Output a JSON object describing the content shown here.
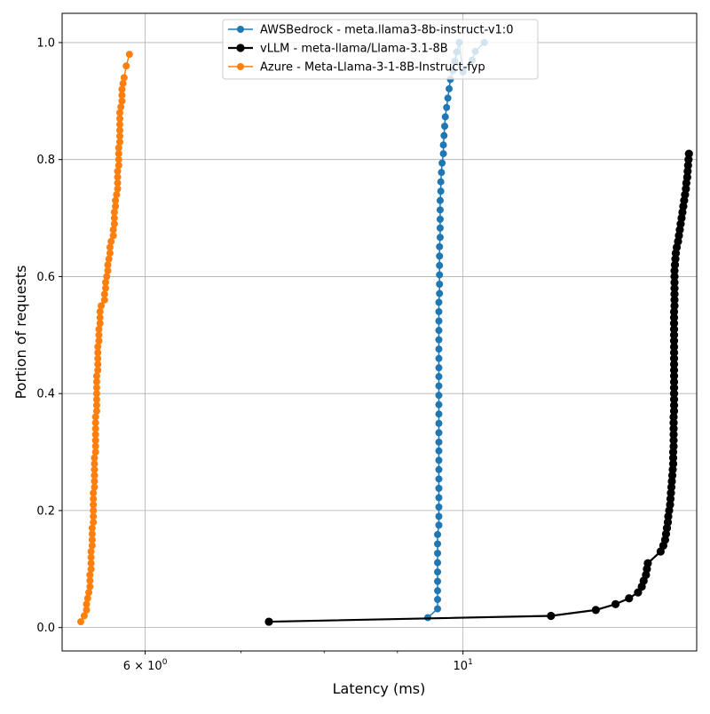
{
  "chart_data": {
    "type": "line",
    "title": "",
    "xlabel": "Latency (ms)",
    "ylabel": "Portion of requests",
    "xscale": "log",
    "xlim": [
      5.25,
      14.56
    ],
    "ylim": [
      -0.04,
      1.05
    ],
    "x_tick_labels": [
      {
        "value": 6,
        "text": "6 × 10",
        "exp": "0"
      },
      {
        "value": 10,
        "text": "10",
        "exp": "1"
      }
    ],
    "x_minor_ticks": [
      7,
      8,
      9,
      20
    ],
    "y_ticks": [
      0.0,
      0.2,
      0.4,
      0.6,
      0.8,
      1.0
    ],
    "y_tick_labels": [
      "0.0",
      "0.2",
      "0.4",
      "0.6",
      "0.8",
      "1.0"
    ],
    "grid": true,
    "legend_position": "top-center",
    "series": [
      {
        "name": "AWSBedrock - meta.llama3-8b-instruct-v1:0",
        "color": "#1f77b4",
        "linewidth": 1.5,
        "marker_radius": 4,
        "x": [
          9.45,
          9.6,
          9.6,
          9.6,
          9.6,
          9.6,
          9.6,
          9.6,
          9.6,
          9.6,
          9.62,
          9.62,
          9.62,
          9.62,
          9.62,
          9.62,
          9.62,
          9.62,
          9.62,
          9.62,
          9.62,
          9.62,
          9.62,
          9.62,
          9.62,
          9.62,
          9.62,
          9.62,
          9.62,
          9.62,
          9.62,
          9.62,
          9.62,
          9.62,
          9.62,
          9.63,
          9.63,
          9.63,
          9.63,
          9.63,
          9.63,
          9.64,
          9.64,
          9.64,
          9.64,
          9.64,
          9.65,
          9.65,
          9.66,
          9.67,
          9.69,
          9.69,
          9.7,
          9.71,
          9.72,
          9.74,
          9.76,
          9.78,
          9.8,
          9.84,
          9.87,
          9.9,
          9.94,
          10.0,
          10.15,
          10.2,
          10.35
        ],
        "y": [
          0.017,
          0.032,
          0.048,
          0.063,
          0.079,
          0.095,
          0.111,
          0.127,
          0.143,
          0.159,
          0.175,
          0.19,
          0.206,
          0.222,
          0.238,
          0.254,
          0.27,
          0.286,
          0.302,
          0.317,
          0.333,
          0.349,
          0.365,
          0.381,
          0.397,
          0.413,
          0.429,
          0.444,
          0.46,
          0.476,
          0.492,
          0.508,
          0.524,
          0.54,
          0.556,
          0.571,
          0.587,
          0.603,
          0.619,
          0.635,
          0.651,
          0.667,
          0.683,
          0.698,
          0.714,
          0.73,
          0.746,
          0.762,
          0.778,
          0.794,
          0.81,
          0.825,
          0.841,
          0.857,
          0.873,
          0.889,
          0.905,
          0.921,
          0.937,
          0.952,
          0.968,
          0.984,
          1.0,
          0.95,
          0.97,
          0.985,
          1.0
        ]
      },
      {
        "name": "vLLM - meta-llama/Llama-3.1-8B",
        "color": "#000000",
        "linewidth": 2.2,
        "marker_radius": 4.6,
        "x": [
          7.32,
          11.52,
          12.38,
          12.78,
          13.06,
          13.25,
          13.33,
          13.37,
          13.42,
          13.44,
          13.46,
          13.74,
          13.8,
          13.84,
          13.86,
          13.88,
          13.9,
          13.91,
          13.93,
          13.95,
          13.96,
          13.97,
          13.98,
          13.99,
          14.0,
          14.01,
          14.02,
          14.02,
          14.02,
          14.03,
          14.03,
          14.03,
          14.03,
          14.03,
          14.03,
          14.04,
          14.04,
          14.04,
          14.04,
          14.04,
          14.04,
          14.04,
          14.04,
          14.04,
          14.04,
          14.04,
          14.04,
          14.04,
          14.04,
          14.04,
          14.04,
          14.04,
          14.04,
          14.05,
          14.05,
          14.05,
          14.05,
          14.05,
          14.05,
          14.05,
          14.06,
          14.07,
          14.08,
          14.1,
          14.13,
          14.15,
          14.17,
          14.19,
          14.21,
          14.23,
          14.25,
          14.27,
          14.29,
          14.31,
          14.32,
          14.34,
          14.35,
          14.36,
          14.37,
          14.38
        ],
        "y": [
          0.01,
          0.02,
          0.03,
          0.04,
          0.05,
          0.06,
          0.07,
          0.08,
          0.09,
          0.1,
          0.11,
          0.13,
          0.14,
          0.15,
          0.16,
          0.17,
          0.18,
          0.19,
          0.2,
          0.21,
          0.22,
          0.23,
          0.24,
          0.25,
          0.26,
          0.27,
          0.28,
          0.29,
          0.3,
          0.31,
          0.32,
          0.33,
          0.34,
          0.35,
          0.36,
          0.37,
          0.38,
          0.39,
          0.4,
          0.41,
          0.42,
          0.43,
          0.44,
          0.45,
          0.46,
          0.47,
          0.48,
          0.49,
          0.5,
          0.51,
          0.52,
          0.53,
          0.54,
          0.55,
          0.56,
          0.57,
          0.58,
          0.59,
          0.6,
          0.61,
          0.62,
          0.63,
          0.64,
          0.65,
          0.66,
          0.67,
          0.68,
          0.69,
          0.7,
          0.71,
          0.72,
          0.73,
          0.74,
          0.75,
          0.76,
          0.77,
          0.78,
          0.79,
          0.8,
          0.81
        ]
      },
      {
        "name": "Azure - Meta-Llama-3-1-8B-Instruct-fyp",
        "color": "#ff7f0e",
        "linewidth": 1.5,
        "marker_radius": 4,
        "x": [
          5.41,
          5.44,
          5.46,
          5.46,
          5.47,
          5.48,
          5.49,
          5.49,
          5.49,
          5.5,
          5.5,
          5.5,
          5.5,
          5.51,
          5.51,
          5.51,
          5.51,
          5.52,
          5.52,
          5.52,
          5.52,
          5.52,
          5.52,
          5.53,
          5.53,
          5.53,
          5.53,
          5.53,
          5.53,
          5.54,
          5.54,
          5.54,
          5.54,
          5.54,
          5.54,
          5.54,
          5.55,
          5.55,
          5.55,
          5.55,
          5.55,
          5.55,
          5.55,
          5.56,
          5.56,
          5.56,
          5.56,
          5.56,
          5.57,
          5.57,
          5.57,
          5.58,
          5.58,
          5.58,
          5.59,
          5.62,
          5.62,
          5.63,
          5.63,
          5.64,
          5.65,
          5.65,
          5.66,
          5.67,
          5.67,
          5.68,
          5.7,
          5.7,
          5.71,
          5.71,
          5.71,
          5.72,
          5.72,
          5.73,
          5.74,
          5.74,
          5.74,
          5.74,
          5.75,
          5.75,
          5.75,
          5.75,
          5.76,
          5.76,
          5.76,
          5.76,
          5.76,
          5.76,
          5.77,
          5.78,
          5.78,
          5.78,
          5.79,
          5.8,
          5.82,
          5.85
        ],
        "y": [
          0.01,
          0.02,
          0.03,
          0.04,
          0.05,
          0.06,
          0.07,
          0.08,
          0.09,
          0.1,
          0.11,
          0.12,
          0.13,
          0.14,
          0.15,
          0.16,
          0.17,
          0.18,
          0.19,
          0.2,
          0.21,
          0.22,
          0.23,
          0.24,
          0.25,
          0.26,
          0.27,
          0.28,
          0.29,
          0.3,
          0.31,
          0.32,
          0.33,
          0.34,
          0.35,
          0.36,
          0.37,
          0.38,
          0.39,
          0.4,
          0.41,
          0.42,
          0.43,
          0.44,
          0.45,
          0.46,
          0.47,
          0.48,
          0.49,
          0.5,
          0.51,
          0.52,
          0.53,
          0.54,
          0.55,
          0.56,
          0.57,
          0.58,
          0.59,
          0.6,
          0.61,
          0.62,
          0.63,
          0.64,
          0.65,
          0.66,
          0.67,
          0.68,
          0.69,
          0.7,
          0.71,
          0.72,
          0.73,
          0.74,
          0.75,
          0.76,
          0.77,
          0.78,
          0.79,
          0.8,
          0.81,
          0.82,
          0.83,
          0.84,
          0.85,
          0.86,
          0.87,
          0.88,
          0.89,
          0.9,
          0.91,
          0.92,
          0.93,
          0.94,
          0.96,
          0.98
        ]
      }
    ]
  }
}
